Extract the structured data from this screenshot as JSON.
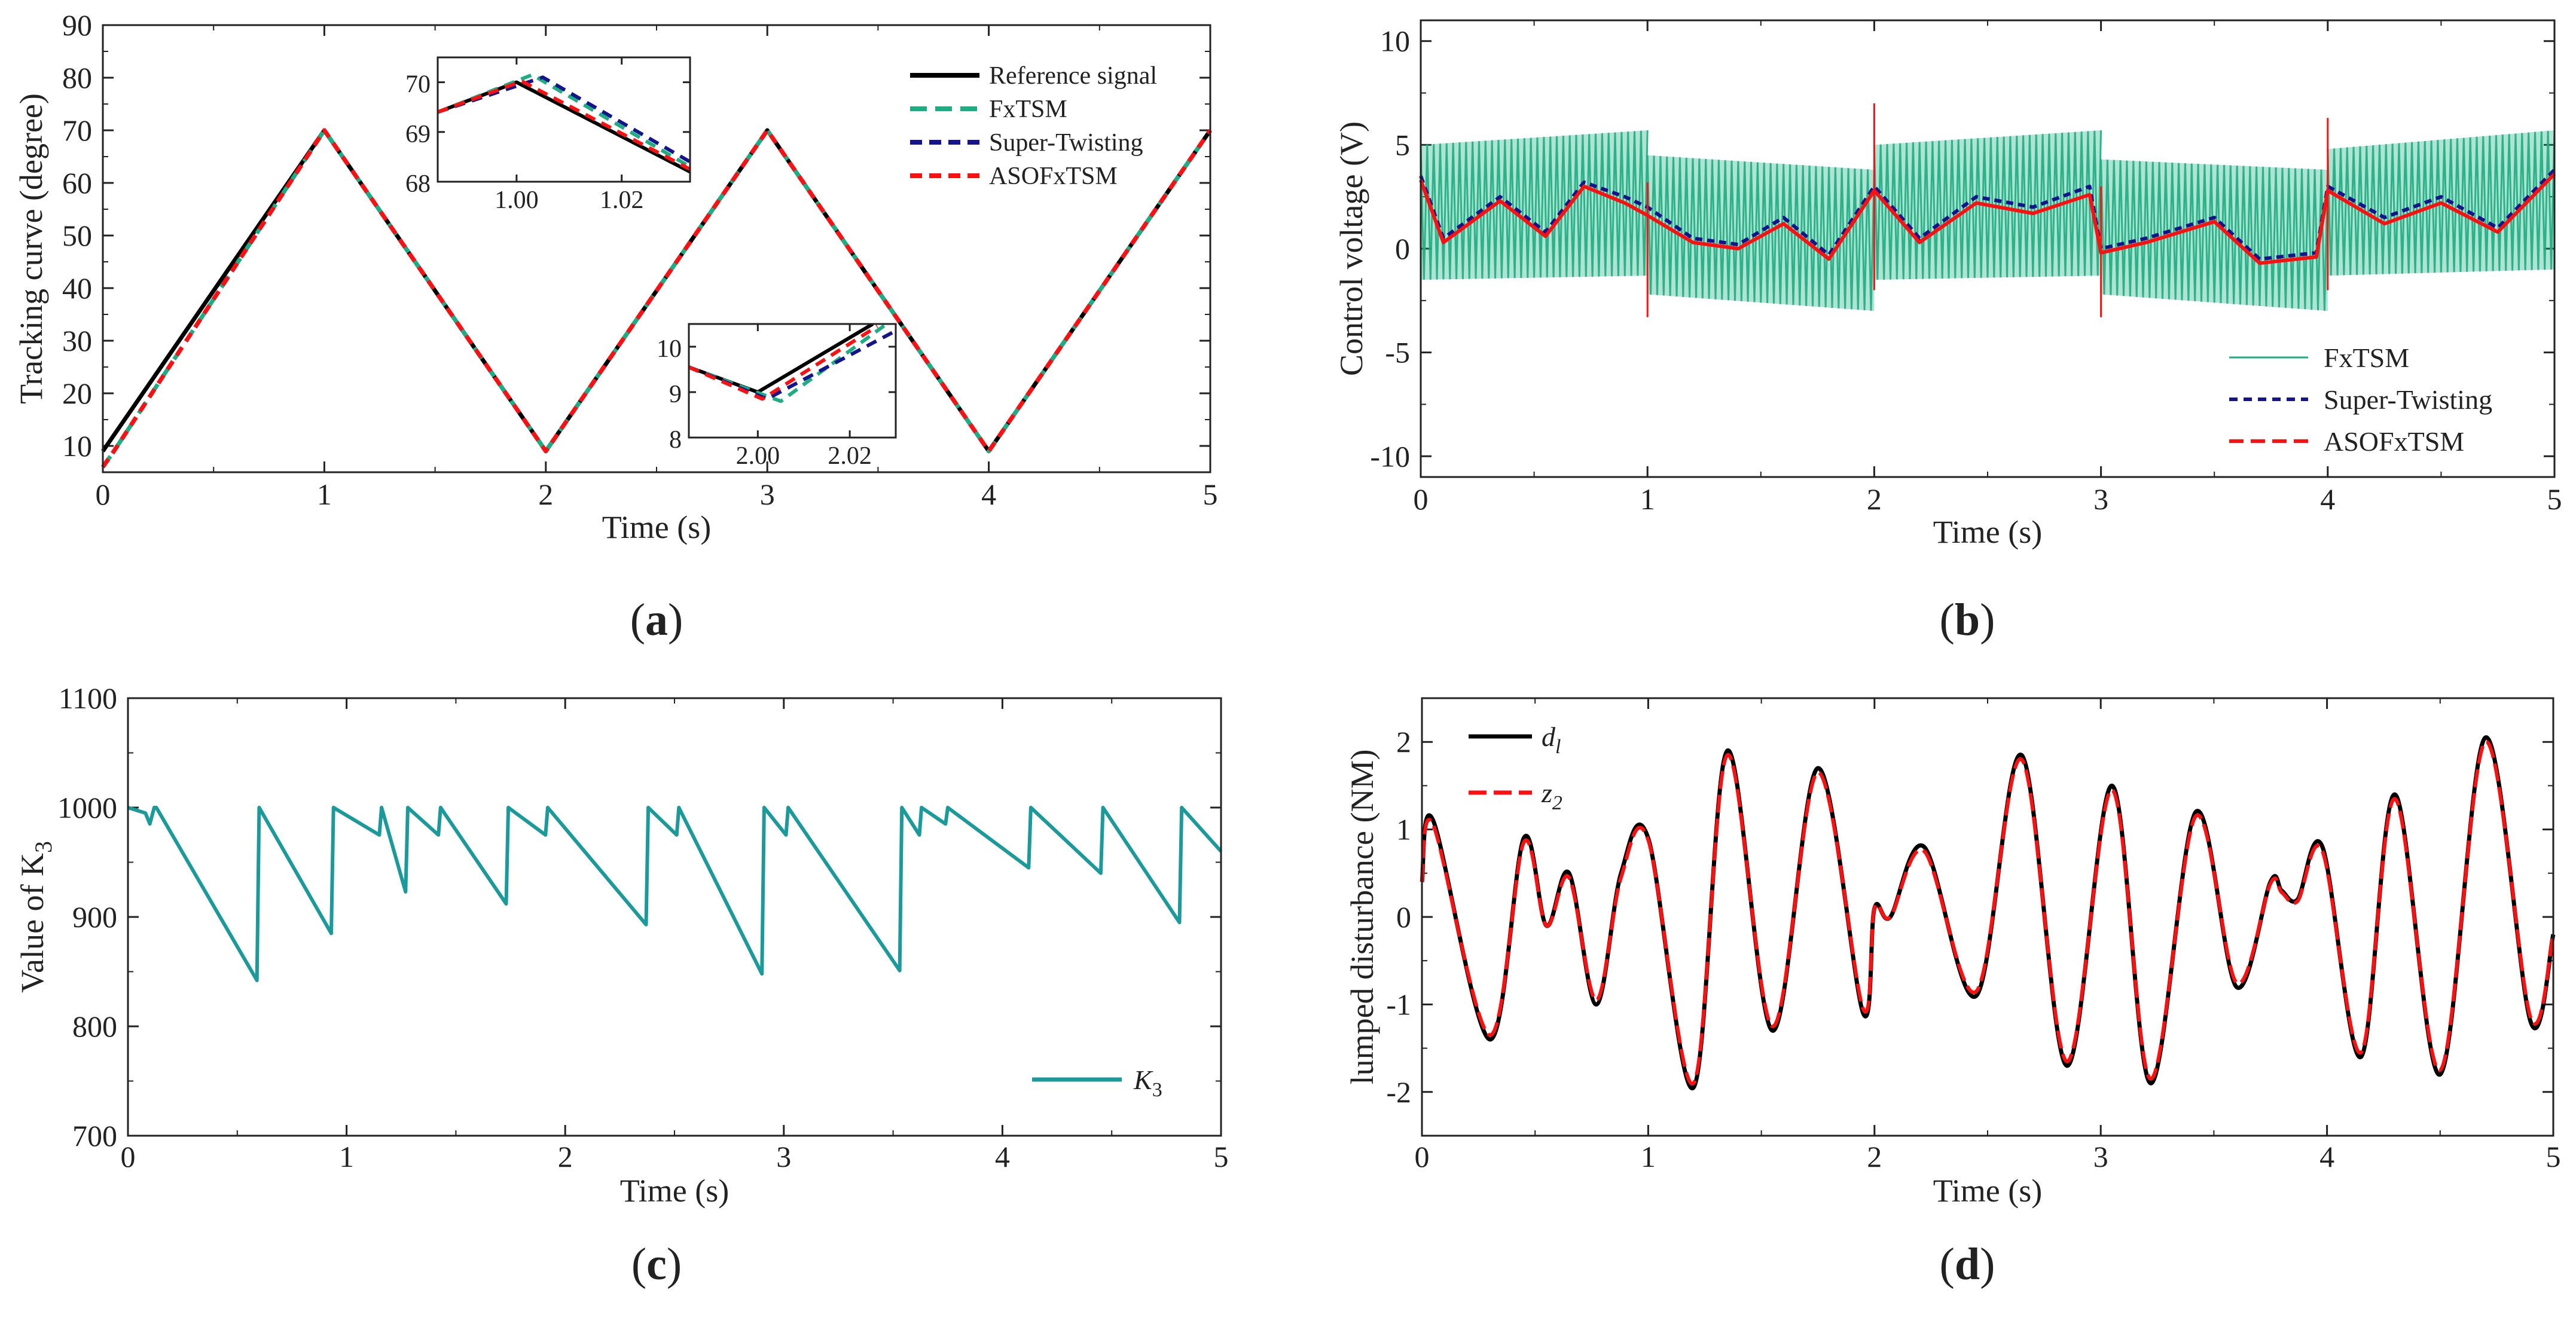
{
  "colors": {
    "reference": "#000000",
    "fxtsm": "#1cae82",
    "super_twisting": "#14148c",
    "asofxtsm": "#ff1010",
    "k3": "#1a9a9a",
    "d1": "#000000",
    "z2": "#ff1010"
  },
  "chart_data": [
    {
      "id": "a",
      "type": "line",
      "caption": {
        "open": "(",
        "letter": "a",
        "close": ")"
      },
      "xlabel": "Time (s)",
      "ylabel": "Tracking curve (degree)",
      "xlim": [
        0,
        5
      ],
      "ylim": [
        5,
        90
      ],
      "xticks": [
        0,
        1,
        2,
        3,
        4,
        5
      ],
      "yticks": [
        10,
        20,
        30,
        40,
        50,
        60,
        70,
        80,
        90
      ],
      "legend": [
        "Reference signal",
        "FxTSM",
        "Super-Twisting",
        "ASOFxTSM"
      ],
      "series": [
        {
          "name": "Reference signal",
          "x": [
            0,
            1,
            2,
            3,
            4,
            5
          ],
          "y": [
            9,
            70,
            9,
            70,
            9,
            70
          ]
        },
        {
          "name": "FxTSM",
          "x": [
            0,
            0.05,
            1,
            2,
            3,
            4,
            5
          ],
          "y": [
            6,
            9,
            70,
            9,
            70,
            9,
            70
          ]
        },
        {
          "name": "Super-Twisting",
          "x": [
            0,
            0.05,
            1,
            2,
            3,
            4,
            5
          ],
          "y": [
            6,
            9,
            70,
            9,
            70,
            9,
            70
          ]
        },
        {
          "name": "ASOFxTSM",
          "x": [
            0,
            0.05,
            1,
            2,
            3,
            4,
            5
          ],
          "y": [
            6,
            9,
            70,
            9,
            70,
            9,
            70
          ]
        }
      ],
      "insets": [
        {
          "xlim": [
            0.985,
            1.033
          ],
          "ylim": [
            68,
            70.5
          ],
          "xticks": [
            1.0,
            1.02
          ],
          "xticklabels": [
            "1.00",
            "1.02"
          ],
          "yticks": [
            68,
            69,
            70
          ],
          "yticklabels": [
            "68",
            "69",
            "70"
          ],
          "series": [
            {
              "name": "Reference signal",
              "x": [
                0.985,
                1.0,
                1.033
              ],
              "y": [
                69.4,
                70.0,
                68.2
              ]
            },
            {
              "name": "FxTSM",
              "x": [
                0.985,
                1.003,
                1.033
              ],
              "y": [
                69.4,
                70.15,
                68.3
              ]
            },
            {
              "name": "Super-Twisting",
              "x": [
                0.985,
                1.005,
                1.033
              ],
              "y": [
                69.4,
                70.1,
                68.4
              ]
            },
            {
              "name": "ASOFxTSM",
              "x": [
                0.985,
                1.001,
                1.033
              ],
              "y": [
                69.4,
                70.02,
                68.25
              ]
            }
          ]
        },
        {
          "xlim": [
            1.985,
            2.03
          ],
          "ylim": [
            8,
            10.5
          ],
          "xticks": [
            2.0,
            2.02
          ],
          "xticklabels": [
            "2.00",
            "2.02"
          ],
          "yticks": [
            8,
            9,
            10
          ],
          "yticklabels": [
            "8",
            "9",
            "10"
          ],
          "series": [
            {
              "name": "Reference signal",
              "x": [
                1.985,
                2.0,
                2.025
              ],
              "y": [
                9.55,
                9.0,
                10.5
              ]
            },
            {
              "name": "FxTSM",
              "x": [
                1.985,
                2.005,
                2.028
              ],
              "y": [
                9.55,
                8.8,
                10.5
              ]
            },
            {
              "name": "Super-Twisting",
              "x": [
                1.985,
                2.002,
                2.03
              ],
              "y": [
                9.55,
                8.85,
                10.35
              ]
            },
            {
              "name": "ASOFxTSM",
              "x": [
                1.985,
                2.001,
                2.026
              ],
              "y": [
                9.55,
                8.85,
                10.45
              ]
            }
          ]
        }
      ]
    },
    {
      "id": "b",
      "type": "line",
      "caption": {
        "open": "(",
        "letter": "b",
        "close": ")"
      },
      "xlabel": "Time (s)",
      "ylabel": "Control voltage (V)",
      "xlim": [
        0,
        5
      ],
      "ylim": [
        -11,
        11
      ],
      "xticks": [
        0,
        1,
        2,
        3,
        4,
        5
      ],
      "yticks": [
        -10,
        -5,
        0,
        5,
        10
      ],
      "legend": [
        "FxTSM",
        "Super-Twisting",
        "ASOFxTSM"
      ],
      "fxtsm_band": [
        {
          "x0": 0,
          "x1": 1,
          "upper": [
            5,
            5.7
          ],
          "lower": [
            -1.5,
            -1.3
          ]
        },
        {
          "x0": 1,
          "x1": 2,
          "upper": [
            4.5,
            3.8
          ],
          "lower": [
            -2.2,
            -3.0
          ]
        },
        {
          "x0": 2,
          "x1": 3,
          "upper": [
            5.0,
            5.7
          ],
          "lower": [
            -1.5,
            -1.3
          ]
        },
        {
          "x0": 3,
          "x1": 4,
          "upper": [
            4.3,
            3.8
          ],
          "lower": [
            -2.2,
            -3.0
          ]
        },
        {
          "x0": 4,
          "x1": 5,
          "upper": [
            4.8,
            5.7
          ],
          "lower": [
            -1.3,
            -1.0
          ]
        }
      ],
      "series": [
        {
          "name": "Super-Twisting",
          "x": [
            0,
            0.1,
            0.35,
            0.55,
            0.72,
            0.9,
            1.0,
            1.2,
            1.4,
            1.6,
            1.8,
            2.0,
            2.2,
            2.45,
            2.7,
            2.95,
            3.0,
            3.2,
            3.5,
            3.7,
            3.95,
            4.0,
            4.25,
            4.5,
            4.75,
            5.0
          ],
          "y": [
            3.5,
            0.5,
            2.5,
            0.8,
            3.2,
            2.5,
            2.0,
            0.5,
            0.2,
            1.5,
            -0.3,
            3.0,
            0.5,
            2.5,
            2.0,
            3.0,
            0,
            0.5,
            1.5,
            -0.5,
            -0.2,
            3.0,
            1.5,
            2.5,
            1.0,
            3.8
          ]
        },
        {
          "name": "ASOFxTSM",
          "x": [
            0,
            0.1,
            0.35,
            0.55,
            0.72,
            0.9,
            1.0,
            1.2,
            1.4,
            1.6,
            1.8,
            2.0,
            2.2,
            2.45,
            2.7,
            2.95,
            3.0,
            3.2,
            3.5,
            3.7,
            3.95,
            4.0,
            4.25,
            4.5,
            4.75,
            5.0
          ],
          "y": [
            3.3,
            0.3,
            2.3,
            0.6,
            3.0,
            2.2,
            1.6,
            0.3,
            0.0,
            1.2,
            -0.5,
            2.8,
            0.3,
            2.2,
            1.7,
            2.6,
            -0.2,
            0.3,
            1.3,
            -0.7,
            -0.4,
            2.8,
            1.2,
            2.2,
            0.8,
            3.6
          ]
        }
      ],
      "spikes": [
        {
          "x": 1,
          "min": -3.3,
          "max": 3.2
        },
        {
          "x": 2,
          "min": -2.0,
          "max": 7.0
        },
        {
          "x": 3,
          "min": -3.3,
          "max": 3.0
        },
        {
          "x": 4,
          "min": -2.0,
          "max": 6.3
        }
      ]
    },
    {
      "id": "c",
      "type": "line",
      "caption": {
        "open": "(",
        "letter": "c",
        "close": ")"
      },
      "xlabel": "Time (s)",
      "ylabel": "Value of K",
      "ylabel_sub": "3",
      "xlim": [
        0,
        5
      ],
      "ylim": [
        700,
        1100
      ],
      "xticks": [
        0,
        1,
        2,
        3,
        4,
        5
      ],
      "yticks": [
        700,
        800,
        900,
        1000,
        1100
      ],
      "legend": [
        {
          "main": "K",
          "sub": "3"
        }
      ],
      "series": [
        {
          "name": "K3",
          "x": [
            0,
            0.08,
            0.1,
            0.12,
            0.13,
            0.59,
            0.6,
            0.93,
            0.94,
            1.15,
            1.16,
            1.27,
            1.28,
            1.42,
            1.43,
            1.73,
            1.74,
            1.91,
            1.92,
            2.37,
            2.38,
            2.51,
            2.52,
            2.9,
            2.91,
            3.01,
            3.02,
            3.53,
            3.54,
            3.62,
            3.63,
            3.74,
            3.75,
            4.12,
            4.13,
            4.45,
            4.46,
            4.81,
            4.82,
            5.0
          ],
          "y": [
            1000,
            995,
            985,
            1000,
            1000,
            842,
            1000,
            885,
            1000,
            975,
            1000,
            923,
            1000,
            975,
            1000,
            912,
            1000,
            975,
            1000,
            893,
            1000,
            975,
            1000,
            848,
            1000,
            975,
            1000,
            851,
            1000,
            975,
            1000,
            985,
            1000,
            945,
            1000,
            940,
            1000,
            895,
            1000,
            960
          ]
        }
      ]
    },
    {
      "id": "d",
      "type": "line",
      "caption": {
        "open": "(",
        "letter": "d",
        "close": ")"
      },
      "xlabel": "Time (s)",
      "ylabel": "lumped disturbance (NM)",
      "xlim": [
        0,
        5
      ],
      "ylim": [
        -2.5,
        2.5
      ],
      "xticks": [
        0,
        1,
        2,
        3,
        4,
        5
      ],
      "yticks": [
        -2,
        -1,
        0,
        1,
        2
      ],
      "legend": [
        {
          "main": "d",
          "sub": "l"
        },
        {
          "main": "z",
          "sub": "2"
        }
      ],
      "series": [
        {
          "name": "d1",
          "x": [
            0,
            0.05,
            0.3,
            0.45,
            0.55,
            0.65,
            0.77,
            0.88,
            1.0,
            1.2,
            1.35,
            1.55,
            1.75,
            1.95,
            2.0,
            2.07,
            2.22,
            2.45,
            2.65,
            2.85,
            3.05,
            3.22,
            3.42,
            3.6,
            3.75,
            3.8,
            3.87,
            3.98,
            4.15,
            4.3,
            4.5,
            4.7,
            4.9,
            5.0
          ],
          "y": [
            0.4,
            1.1,
            -1.4,
            0.9,
            -0.1,
            0.5,
            -1.0,
            0.5,
            0.9,
            -1.95,
            1.9,
            -1.3,
            1.7,
            -1.1,
            0.1,
            0.0,
            0.8,
            -0.9,
            1.85,
            -1.7,
            1.5,
            -1.9,
            1.2,
            -0.8,
            0.4,
            0.3,
            0.2,
            0.8,
            -1.6,
            1.4,
            -1.8,
            2.05,
            -1.2,
            -0.2
          ]
        },
        {
          "name": "z2",
          "x": [
            0,
            0.05,
            0.3,
            0.45,
            0.55,
            0.65,
            0.77,
            0.88,
            1.0,
            1.2,
            1.35,
            1.55,
            1.75,
            1.95,
            2.0,
            2.07,
            2.22,
            2.45,
            2.65,
            2.85,
            3.05,
            3.22,
            3.42,
            3.6,
            3.75,
            3.8,
            3.87,
            3.98,
            4.15,
            4.3,
            4.5,
            4.7,
            4.9,
            5.0
          ],
          "y": [
            0.4,
            1.05,
            -1.35,
            0.85,
            -0.1,
            0.45,
            -0.95,
            0.45,
            0.88,
            -1.9,
            1.85,
            -1.25,
            1.65,
            -1.05,
            0.1,
            0.0,
            0.75,
            -0.85,
            1.8,
            -1.65,
            1.45,
            -1.85,
            1.15,
            -0.75,
            0.38,
            0.28,
            0.18,
            0.75,
            -1.55,
            1.35,
            -1.75,
            2.0,
            -1.15,
            -0.2
          ]
        }
      ]
    }
  ]
}
